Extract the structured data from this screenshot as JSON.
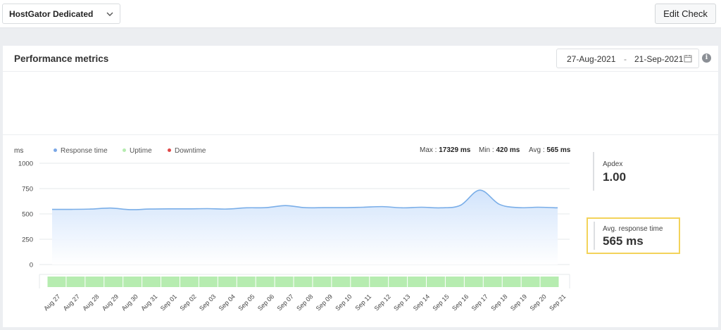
{
  "topbar": {
    "monitor_selected": "HostGator Dedicated",
    "edit_label": "Edit Check"
  },
  "card": {
    "title": "Performance metrics",
    "date_from": "27-Aug-2021",
    "date_sep": "-",
    "date_to": "21-Sep-2021",
    "info_glyph": "i"
  },
  "legend": {
    "unit": "ms",
    "items": [
      {
        "label": "Response time",
        "color": "#7aa7e6"
      },
      {
        "label": "Uptime",
        "color": "#b6ecb0"
      },
      {
        "label": "Downtime",
        "color": "#e04848"
      }
    ]
  },
  "stats": {
    "max_label": "Max :",
    "max_value": "17329 ms",
    "min_label": "Min :",
    "min_value": "420 ms",
    "avg_label": "Avg :",
    "avg_value": "565 ms"
  },
  "metrics": {
    "apdex_label": "Apdex",
    "apdex_value": "1.00",
    "avg_rt_label": "Avg. response time",
    "avg_rt_value": "565 ms"
  },
  "colors": {
    "line": "#7aaee8",
    "fill_top": "#cfe2fb",
    "uptime": "#b6ecb0",
    "highlight": "#f3d35a"
  },
  "chart_data": {
    "type": "area",
    "ylabel": "ms",
    "ylim": [
      0,
      1000
    ],
    "yticks": [
      0,
      250,
      500,
      750,
      1000
    ],
    "x": [
      "Aug 27",
      "Aug 27",
      "Aug 28",
      "Aug 29",
      "Aug 30",
      "Aug 31",
      "Sep 01",
      "Sep 02",
      "Sep 03",
      "Sep 04",
      "Sep 05",
      "Sep 06",
      "Sep 07",
      "Sep 08",
      "Sep 09",
      "Sep 10",
      "Sep 11",
      "Sep 12",
      "Sep 13",
      "Sep 14",
      "Sep 15",
      "Sep 16",
      "Sep 17",
      "Sep 18",
      "Sep 19",
      "Sep 20",
      "Sep 21"
    ],
    "series": [
      {
        "name": "Response time",
        "values": [
          545,
          545,
          548,
          558,
          542,
          548,
          550,
          550,
          552,
          548,
          560,
          562,
          582,
          562,
          562,
          562,
          566,
          572,
          560,
          566,
          560,
          585,
          735,
          595,
          562,
          566,
          560
        ]
      }
    ],
    "uptime": "full",
    "legend": "top-left",
    "grid": true
  }
}
